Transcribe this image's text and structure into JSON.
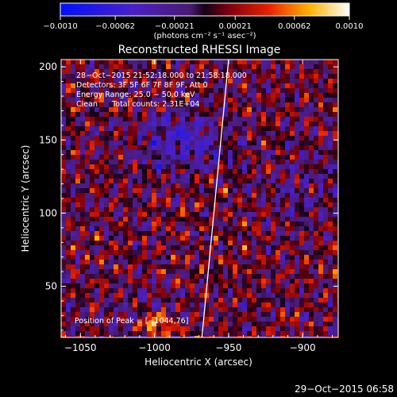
{
  "chart_data": {
    "type": "heatmap",
    "title": "Reconstructed RHESSI Image",
    "xlabel": "Heliocentric X (arcsec)",
    "ylabel": "Heliocentric Y (arcsec)",
    "xlim": [
      -1063,
      -876
    ],
    "ylim": [
      15,
      205
    ],
    "xticks": [
      -1050,
      -1000,
      -950,
      -900
    ],
    "xtick_labels": [
      "−1050",
      "−1000",
      "−950",
      "−900"
    ],
    "yticks": [
      50,
      100,
      150,
      200
    ],
    "ytick_labels": [
      "50",
      "100",
      "150",
      "200"
    ],
    "colorbar": {
      "min": -0.001,
      "max": 0.001,
      "ticks": [
        -0.001,
        -0.00062,
        -0.00021,
        0.00021,
        0.00062,
        0.001
      ],
      "tick_labels": [
        "−0.0010",
        "−0.00062",
        "−0.00021",
        "0.00021",
        "0.00062",
        "0.0010"
      ],
      "unit_label": "(photons cm⁻² s⁻¹ asec⁻²)"
    },
    "annotations": [
      "28−Oct−2015 21:52:18.000 to 21:58:18.000",
      "Detectors: 3F 5F 6F 7F 8F 9F, Att 0",
      "Energy Range: 25.0 − 50.0 keV",
      "Clean      Total counts: 2.31E+04"
    ],
    "peak_label": "Position of Peak = [−1044,76]",
    "limb_line": {
      "x": [
        -968,
        -950
      ],
      "y": [
        15,
        205
      ]
    },
    "grid": false,
    "legend": "none"
  },
  "footer": {
    "timestamp": "29−Oct−2015 06:58"
  }
}
